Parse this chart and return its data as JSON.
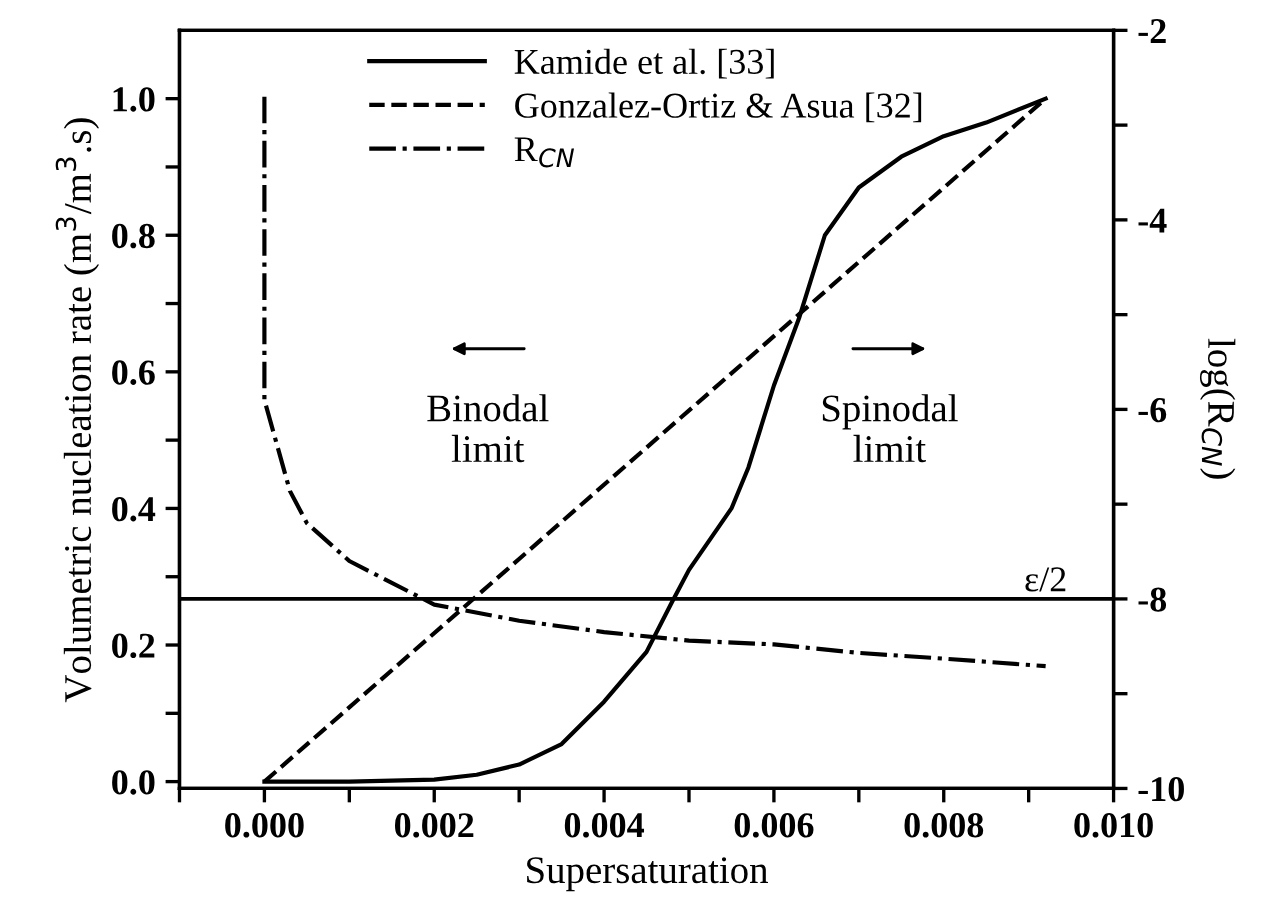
{
  "chart_data": {
    "type": "line",
    "xlabel": "Supersaturation",
    "ylabel": "Volumetric nucleation rate (m$^{3}$/m$^{3}$.s)",
    "y2label": "log(R$_{CN}$)",
    "xlim": [
      -0.001,
      0.01
    ],
    "xticks": [
      {
        "value": -0.001,
        "label": null
      },
      {
        "value": 0.0,
        "label": "0.000"
      },
      {
        "value": 0.001,
        "label": null
      },
      {
        "value": 0.002,
        "label": "0.002"
      },
      {
        "value": 0.003,
        "label": null
      },
      {
        "value": 0.004,
        "label": "0.004"
      },
      {
        "value": 0.005,
        "label": null
      },
      {
        "value": 0.006,
        "label": "0.006"
      },
      {
        "value": 0.007,
        "label": null
      },
      {
        "value": 0.008,
        "label": "0.008"
      },
      {
        "value": 0.009,
        "label": null
      },
      {
        "value": 0.01,
        "label": "0.010"
      }
    ],
    "ylim": [
      -0.01,
      1.1
    ],
    "yticks": [
      {
        "value": 0.0,
        "label": "0.0"
      },
      {
        "value": 0.1,
        "label": null
      },
      0.2,
      {
        "value": 0.3,
        "label": null
      },
      0.4,
      {
        "value": 0.5,
        "label": null
      },
      0.6,
      {
        "value": 0.7,
        "label": null
      },
      0.8,
      {
        "value": 0.9,
        "label": null
      },
      {
        "value": 1.0,
        "label": "1.0"
      }
    ],
    "y2lim": [
      -10,
      -2
    ],
    "y2ticks": [
      -10,
      {
        "value": -9,
        "label": null
      },
      -8,
      {
        "value": -7,
        "label": null
      },
      -6,
      {
        "value": -5,
        "label": null
      },
      -4,
      {
        "value": -3,
        "label": null
      },
      -2
    ],
    "grid": false,
    "legend": "top",
    "series": [
      {
        "name": "Kamide et al. [33]",
        "color": "#000000",
        "line_style": "solid",
        "x": [
          0.0,
          0.001,
          0.002,
          0.0025,
          0.003,
          0.0035,
          0.004,
          0.0045,
          0.0048,
          0.005,
          0.0055,
          0.0057,
          0.006,
          0.0063,
          0.0066,
          0.007,
          0.0075,
          0.008,
          0.0085,
          0.0092
        ],
        "values": [
          0.0,
          0.0,
          0.003,
          0.01,
          0.025,
          0.055,
          0.117,
          0.19,
          0.263,
          0.31,
          0.4,
          0.46,
          0.58,
          0.68,
          0.8,
          0.87,
          0.915,
          0.945,
          0.965,
          1.0
        ]
      },
      {
        "name": "Gonzalez-Ortiz & Asua [32]",
        "color": "#000000",
        "line_style": "dashed",
        "x": [
          0.0,
          0.0092
        ],
        "values": [
          0.0,
          1.0
        ]
      },
      {
        "name": "R$_{CN}$",
        "color": "#000000",
        "line_style": "dashdot",
        "axis": "y2",
        "x": [
          0.0,
          0.0,
          0.0003,
          0.0005,
          0.001,
          0.002,
          0.003,
          0.004,
          0.005,
          0.006,
          0.007,
          0.008,
          0.0092
        ],
        "values": [
          -2.7,
          -5.9,
          -6.86,
          -7.2,
          -7.6,
          -8.06,
          -8.23,
          -8.35,
          -8.44,
          -8.48,
          -8.57,
          -8.63,
          -8.71
        ]
      }
    ],
    "ref_lines": [
      {
        "axis": "y2",
        "value": -8,
        "label": "ε/2",
        "color": "#000000",
        "line_style": "solid"
      }
    ],
    "annotations": [
      "Binodal\nlimit",
      "Spinodal\nlimit"
    ]
  }
}
